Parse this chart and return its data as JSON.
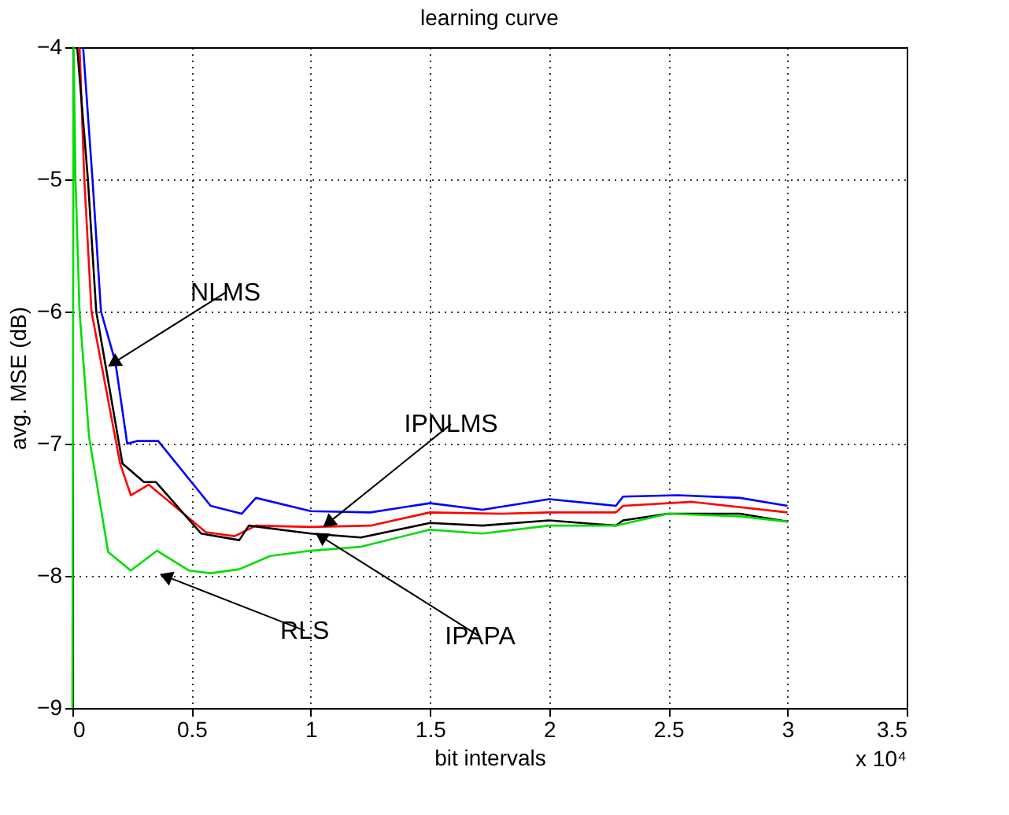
{
  "chart_data": {
    "type": "line",
    "title": "learning curve",
    "xlabel": "bit intervals",
    "ylabel": "avg. MSE (dB)",
    "xlim": [
      0,
      3.5
    ],
    "xticks": [
      0,
      0.5,
      1,
      1.5,
      2,
      2.5,
      3,
      3.5
    ],
    "ylim": [
      -9,
      -4
    ],
    "yticks": [
      -9,
      -8,
      -7,
      -6,
      -5,
      -4
    ],
    "grid": true,
    "line_style": "solid",
    "marker": "none",
    "series": [
      {
        "color": "#0000ff",
        "x": [
          0.045,
          0.085,
          0.12,
          0.18,
          0.23,
          0.27,
          0.36,
          0.58,
          0.71,
          0.77,
          1.0,
          1.25,
          1.5,
          1.72,
          2.0,
          2.28,
          2.31,
          2.54,
          2.8,
          3.0
        ],
        "values": [
          -4,
          -5.02,
          -6,
          -6.38,
          -7,
          -6.98,
          -6.98,
          -7.47,
          -7.53,
          -7.41,
          -7.51,
          -7.52,
          -7.45,
          -7.5,
          -7.42,
          -7.47,
          -7.4,
          -7.39,
          -7.41,
          -7.47
        ]
      },
      {
        "color": "#ff0000",
        "x": [
          0.03,
          0.05,
          0.08,
          0.2,
          0.245,
          0.32,
          0.56,
          0.68,
          0.77,
          1.0,
          1.25,
          1.5,
          1.8,
          2.0,
          2.28,
          2.31,
          2.6,
          3.0
        ],
        "values": [
          -4,
          -5,
          -6,
          -7.15,
          -7.39,
          -7.31,
          -7.67,
          -7.7,
          -7.62,
          -7.63,
          -7.62,
          -7.52,
          -7.53,
          -7.52,
          -7.52,
          -7.47,
          -7.44,
          -7.52
        ]
      },
      {
        "color": "#000000",
        "x": [
          0.02,
          0.065,
          0.1,
          0.21,
          0.3,
          0.35,
          0.54,
          0.7,
          0.74,
          1.0,
          1.21,
          1.5,
          1.72,
          2.0,
          2.28,
          2.31,
          2.5,
          2.8,
          3.0
        ],
        "values": [
          -4,
          -5,
          -6,
          -7.15,
          -7.29,
          -7.29,
          -7.68,
          -7.73,
          -7.62,
          -7.68,
          -7.71,
          -7.6,
          -7.62,
          -7.58,
          -7.62,
          -7.58,
          -7.53,
          -7.53,
          -7.59
        ]
      },
      {
        "color": "#00dd00",
        "x": [
          0,
          0.005,
          0.013,
          0.03,
          0.07,
          0.15,
          0.245,
          0.355,
          0.49,
          0.58,
          0.7,
          0.83,
          1.0,
          1.21,
          1.5,
          1.72,
          2.0,
          2.28,
          2.5,
          2.8,
          3.0
        ],
        "values": [
          -9,
          -4,
          -5,
          -6,
          -6.95,
          -7.82,
          -7.96,
          -7.81,
          -7.96,
          -7.98,
          -7.95,
          -7.85,
          -7.81,
          -7.78,
          -7.65,
          -7.68,
          -7.62,
          -7.62,
          -7.53,
          -7.55,
          -7.59
        ]
      }
    ],
    "annotations": [
      {
        "text": "NLMS",
        "x": 0.18,
        "y": -6.38
      },
      {
        "text": "IPNLMS",
        "x": 1.08,
        "y": -7.59
      },
      {
        "text": "IPAPA",
        "x": 1.05,
        "y": -7.71
      },
      {
        "text": "RLS",
        "x": 0.4,
        "y": -8.01
      },
      "x 10⁴"
    ]
  }
}
